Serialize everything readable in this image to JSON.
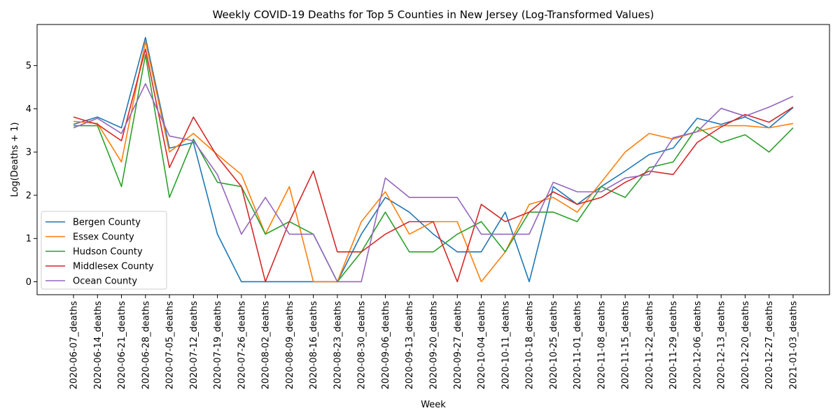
{
  "chart_data": {
    "type": "line",
    "title": "Weekly COVID-19 Deaths for Top 5 Counties in New Jersey (Log-Transformed Values)",
    "xlabel": "Week",
    "ylabel": "Log(Deaths + 1)",
    "ylim": [
      -0.3,
      5.95
    ],
    "yticks": [
      0,
      1,
      2,
      3,
      4,
      5
    ],
    "grid": false,
    "legend_position": "lower-left",
    "categories": [
      "2020-06-07_deaths",
      "2020-06-14_deaths",
      "2020-06-21_deaths",
      "2020-06-28_deaths",
      "2020-07-05_deaths",
      "2020-07-12_deaths",
      "2020-07-19_deaths",
      "2020-07-26_deaths",
      "2020-08-02_deaths",
      "2020-08-09_deaths",
      "2020-08-16_deaths",
      "2020-08-23_deaths",
      "2020-08-30_deaths",
      "2020-09-06_deaths",
      "2020-09-13_deaths",
      "2020-09-20_deaths",
      "2020-09-27_deaths",
      "2020-10-04_deaths",
      "2020-10-11_deaths",
      "2020-10-18_deaths",
      "2020-10-25_deaths",
      "2020-11-01_deaths",
      "2020-11-08_deaths",
      "2020-11-15_deaths",
      "2020-11-22_deaths",
      "2020-11-29_deaths",
      "2020-12-06_deaths",
      "2020-12-13_deaths",
      "2020-12-20_deaths",
      "2020-12-27_deaths",
      "2021-01-03_deaths"
    ],
    "series": [
      {
        "name": "Bergen County",
        "color": "#1f77b4",
        "values": [
          3.64,
          3.81,
          3.56,
          5.65,
          3.09,
          3.22,
          1.1,
          0.0,
          0.0,
          0.0,
          0.0,
          0.0,
          1.1,
          1.95,
          1.61,
          1.1,
          0.69,
          0.69,
          1.61,
          0.0,
          2.2,
          1.79,
          2.2,
          2.56,
          2.94,
          3.09,
          3.78,
          3.64,
          3.81,
          3.56,
          4.03
        ]
      },
      {
        "name": "Essex County",
        "color": "#ff7f0e",
        "values": [
          3.71,
          3.66,
          2.77,
          5.56,
          3.0,
          3.43,
          2.94,
          2.48,
          1.1,
          2.2,
          0.0,
          0.0,
          1.39,
          2.08,
          1.1,
          1.39,
          1.39,
          0.0,
          0.69,
          1.79,
          1.95,
          1.61,
          2.3,
          3.0,
          3.43,
          3.3,
          3.47,
          3.61,
          3.61,
          3.56,
          3.66
        ]
      },
      {
        "name": "Hudson County",
        "color": "#2ca02c",
        "values": [
          3.61,
          3.61,
          2.2,
          5.25,
          1.95,
          3.3,
          2.3,
          2.2,
          1.1,
          1.39,
          1.1,
          0.0,
          0.69,
          1.61,
          0.69,
          0.69,
          1.1,
          1.39,
          0.69,
          1.61,
          1.61,
          1.39,
          2.2,
          1.95,
          2.64,
          2.77,
          3.58,
          3.22,
          3.4,
          3.0,
          3.56
        ]
      },
      {
        "name": "Middlesex County",
        "color": "#d62728",
        "values": [
          3.81,
          3.64,
          3.26,
          5.38,
          2.64,
          3.81,
          2.89,
          2.2,
          0.0,
          1.39,
          2.56,
          0.69,
          0.69,
          1.1,
          1.39,
          1.39,
          0.0,
          1.79,
          1.39,
          1.61,
          2.08,
          1.79,
          1.95,
          2.3,
          2.56,
          2.48,
          3.22,
          3.58,
          3.87,
          3.69,
          4.04
        ]
      },
      {
        "name": "Ocean County",
        "color": "#9467bd",
        "values": [
          3.56,
          3.78,
          3.43,
          4.58,
          3.37,
          3.26,
          2.48,
          1.1,
          1.95,
          1.1,
          1.1,
          0.0,
          0.0,
          2.4,
          1.95,
          1.95,
          1.95,
          1.1,
          1.1,
          1.1,
          2.3,
          2.08,
          2.08,
          2.4,
          2.48,
          3.33,
          3.47,
          4.01,
          3.83,
          4.04,
          4.29
        ]
      }
    ]
  }
}
